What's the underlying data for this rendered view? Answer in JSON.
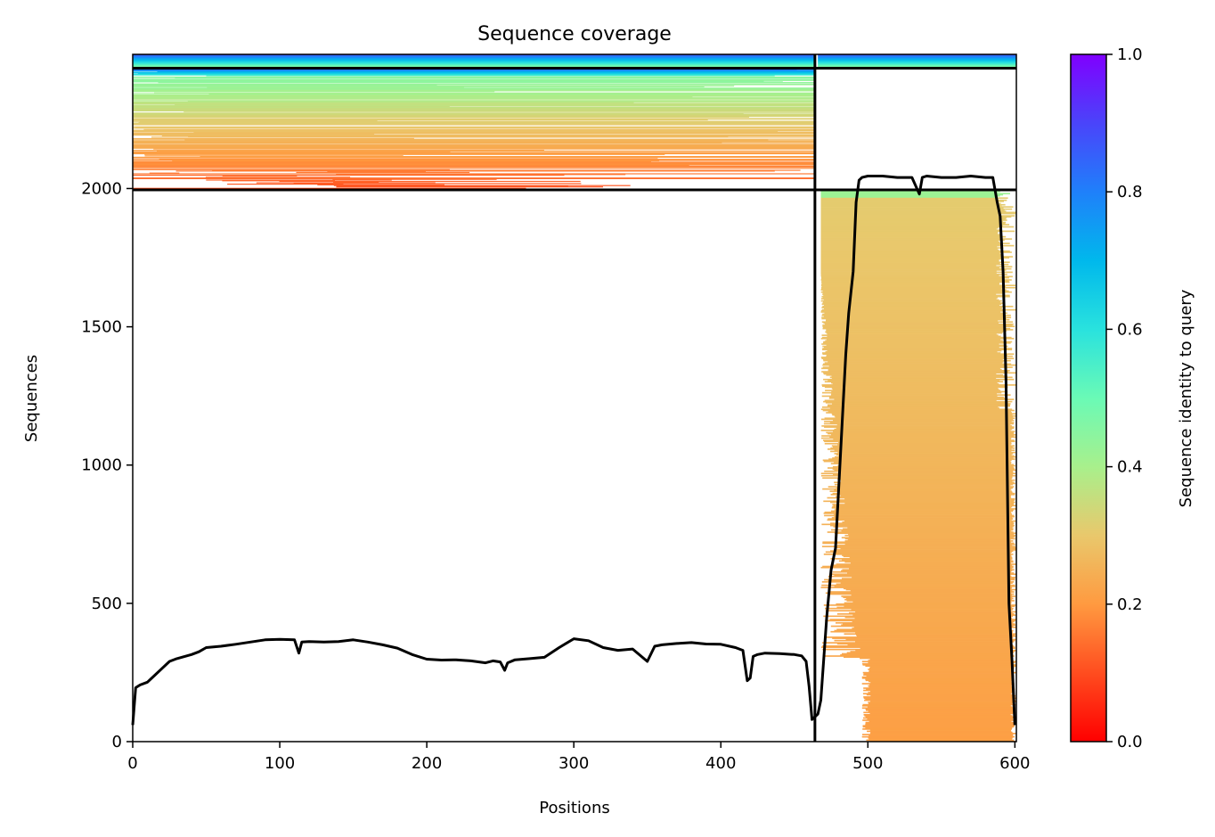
{
  "chart_data": {
    "type": "heatmap",
    "title": "Sequence coverage",
    "xlabel": "Positions",
    "ylabel": "Sequences",
    "xlim": [
      0,
      601
    ],
    "ylim": [
      0,
      2485
    ],
    "xticks": [
      0,
      100,
      200,
      300,
      400,
      500,
      600
    ],
    "yticks": [
      0,
      500,
      1000,
      1500,
      2000
    ],
    "colorbar": {
      "label": "Sequence identity to query",
      "range": [
        0.0,
        1.0
      ],
      "ticks": [
        "0.0",
        "0.2",
        "0.4",
        "0.6",
        "0.8",
        "1.0"
      ],
      "colormap": "rainbow_r"
    },
    "segment_boundary_x": 464,
    "row_block_boundaries_y": [
      1995,
      2435
    ],
    "blocks": [
      {
        "x_range": [
          0,
          464
        ],
        "y_range": [
          1995,
          2435
        ],
        "identity_low": 0.08,
        "identity_high": 0.88
      },
      {
        "x_range": [
          0,
          601
        ],
        "y_range": [
          2435,
          2485
        ],
        "identity_low": 0.42,
        "identity_high": 0.88
      },
      {
        "x_range": [
          464,
          601
        ],
        "y_range": [
          0,
          1995
        ],
        "identity_low": 0.2,
        "identity_high": 0.43
      }
    ],
    "coverage_series": {
      "x": [
        0,
        2,
        5,
        10,
        15,
        20,
        25,
        30,
        40,
        45,
        50,
        60,
        70,
        80,
        90,
        100,
        110,
        113,
        115,
        120,
        130,
        140,
        150,
        160,
        170,
        180,
        190,
        200,
        210,
        220,
        230,
        240,
        245,
        250,
        253,
        255,
        260,
        270,
        280,
        290,
        300,
        310,
        320,
        330,
        340,
        350,
        355,
        360,
        370,
        380,
        390,
        400,
        410,
        415,
        418,
        420,
        422,
        425,
        430,
        440,
        450,
        455,
        458,
        460,
        462,
        464,
        466,
        468,
        470,
        472,
        475,
        478,
        480,
        483,
        485,
        487,
        490,
        492,
        494,
        496,
        500,
        510,
        520,
        530,
        535,
        537,
        540,
        550,
        560,
        570,
        580,
        585,
        588,
        590,
        592,
        594,
        596,
        598,
        600
      ],
      "y": [
        60,
        195,
        205,
        215,
        240,
        265,
        290,
        300,
        315,
        325,
        340,
        345,
        352,
        360,
        368,
        370,
        368,
        320,
        360,
        362,
        360,
        362,
        368,
        360,
        350,
        338,
        315,
        298,
        295,
        296,
        292,
        285,
        292,
        288,
        258,
        285,
        296,
        300,
        305,
        340,
        372,
        365,
        340,
        330,
        335,
        290,
        345,
        350,
        355,
        358,
        353,
        352,
        340,
        330,
        220,
        230,
        308,
        315,
        320,
        318,
        315,
        310,
        290,
        200,
        80,
        90,
        100,
        150,
        300,
        450,
        620,
        700,
        900,
        1200,
        1400,
        1550,
        1700,
        1950,
        2030,
        2040,
        2045,
        2045,
        2040,
        2040,
        1980,
        2040,
        2045,
        2040,
        2040,
        2045,
        2040,
        2040,
        1950,
        1900,
        1700,
        1300,
        500,
        300,
        60
      ]
    }
  }
}
